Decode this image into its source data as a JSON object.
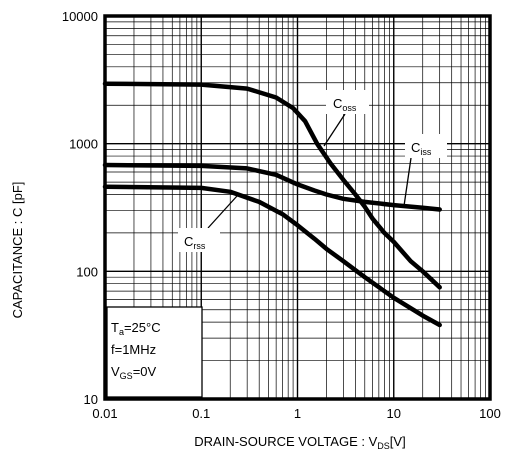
{
  "chart_data": {
    "type": "line",
    "xscale": "log",
    "yscale": "log",
    "xlim": [
      0.01,
      100
    ],
    "ylim": [
      10,
      10000
    ],
    "grid": true,
    "xticks": [
      {
        "value": 0.01,
        "label": "0.01"
      },
      {
        "value": 0.1,
        "label": "0.1"
      },
      {
        "value": 1,
        "label": "1"
      },
      {
        "value": 10,
        "label": "10"
      },
      {
        "value": 100,
        "label": "100"
      }
    ],
    "yticks": [
      {
        "value": 10,
        "label": "10"
      },
      {
        "value": 100,
        "label": "100"
      },
      {
        "value": 1000,
        "label": "1000"
      },
      {
        "value": 10000,
        "label": "10000"
      }
    ],
    "xlabel": {
      "main": "DRAIN-SOURCE VOLTAGE : V",
      "sub": "DS",
      "tail": "[V]"
    },
    "ylabel": "CAPACITANCE : C [pF]",
    "series": [
      {
        "name": {
          "main": "C",
          "sub": "oss"
        },
        "x": [
          0.01,
          0.1,
          0.3,
          0.6,
          0.9,
          1.2,
          1.6,
          2.2,
          3,
          4,
          5,
          6,
          8,
          10,
          15,
          20,
          30
        ],
        "y": [
          2950,
          2900,
          2700,
          2300,
          1900,
          1500,
          1000,
          700,
          520,
          400,
          320,
          260,
          200,
          170,
          120,
          100,
          75
        ]
      },
      {
        "name": {
          "main": "C",
          "sub": "iss"
        },
        "x": [
          0.01,
          0.1,
          0.3,
          0.6,
          1,
          1.5,
          2,
          3,
          5,
          10,
          20,
          30
        ],
        "y": [
          680,
          670,
          640,
          570,
          480,
          430,
          400,
          370,
          350,
          330,
          315,
          305
        ]
      },
      {
        "name": {
          "main": "C",
          "sub": "rss"
        },
        "x": [
          0.01,
          0.1,
          0.2,
          0.4,
          0.7,
          1,
          1.5,
          2,
          3,
          5,
          10,
          20,
          30
        ],
        "y": [
          460,
          450,
          420,
          350,
          280,
          230,
          180,
          150,
          120,
          90,
          62,
          45,
          38
        ]
      }
    ],
    "conditions": [
      {
        "main": "T",
        "sub": "a",
        "tail": "=25°C"
      },
      {
        "main": "f=1MHz",
        "sub": "",
        "tail": ""
      },
      {
        "main": "V",
        "sub": "GS",
        "tail": "=0V"
      }
    ]
  }
}
